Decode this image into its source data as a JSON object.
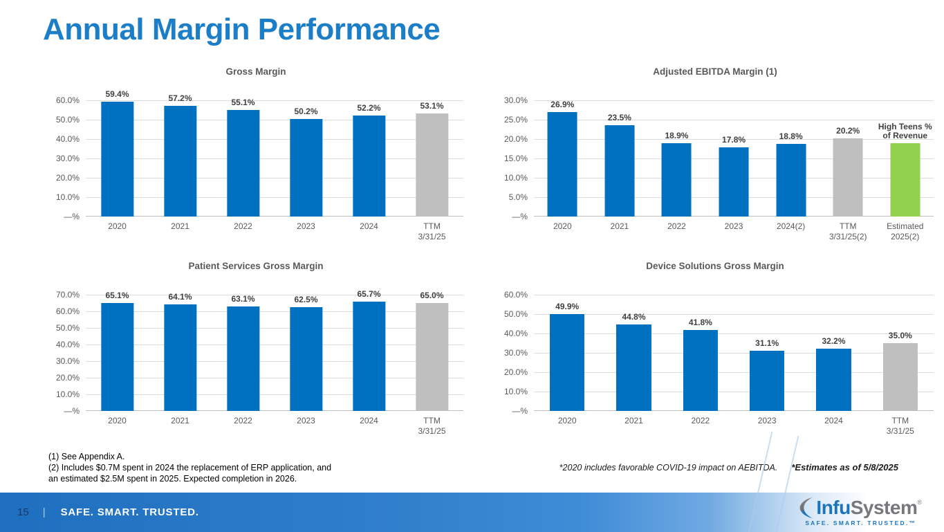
{
  "slide": {
    "title": "Annual Margin Performance",
    "footnotes_left": [
      "(1) See Appendix A.",
      "(2) Includes $0.7M spent in 2024 the replacement of ERP application, and",
      "an estimated $2.5M spent in 2025. Expected completion in 2026."
    ],
    "footnote_covid": "*2020 includes favorable COVID-19 impact on AEBITDA.",
    "footnote_estimates": "*Estimates as of 5/8/2025",
    "page_number": "15",
    "footer_divider": "|",
    "footer_tagline": "SAFE. SMART. TRUSTED.",
    "logo": {
      "name_part1": "Infu",
      "name_part2": "System",
      "registered_mark": "®",
      "tagline": "SAFE. SMART. TRUSTED.™"
    }
  },
  "colors": {
    "title_blue": "#1B7EC6",
    "bar_blue": "#0070C0",
    "bar_gray": "#BFBFBF",
    "bar_green": "#92D050",
    "chart_text": "#595959",
    "gridline": "#DCDCDC"
  },
  "chart_data": [
    {
      "type": "bar",
      "title": "Gross Margin",
      "categories": [
        "2020",
        "2021",
        "2022",
        "2023",
        "2024",
        "TTM\n3/31/25"
      ],
      "values": [
        59.4,
        57.2,
        55.1,
        50.2,
        52.2,
        53.1
      ],
      "labels": [
        "59.4%",
        "57.2%",
        "55.1%",
        "50.2%",
        "52.2%",
        "53.1%"
      ],
      "bar_colors": [
        "blue",
        "blue",
        "blue",
        "blue",
        "blue",
        "gray"
      ],
      "yticks": [
        "60.0%",
        "50.0%",
        "40.0%",
        "30.0%",
        "20.0%",
        "10.0%",
        "—%"
      ],
      "ylim": [
        0,
        60
      ],
      "xlabel": "",
      "ylabel": "",
      "grid": true,
      "legend": "none"
    },
    {
      "type": "bar",
      "title": "Adjusted EBITDA Margin (1)",
      "categories": [
        "2020",
        "2021",
        "2022",
        "2023",
        "2024(2)",
        "TTM\n3/31/25(2)",
        "Estimated\n2025(2)"
      ],
      "values": [
        26.9,
        23.5,
        18.9,
        17.8,
        18.8,
        20.2,
        19.0
      ],
      "labels": [
        "26.9%",
        "23.5%",
        "18.9%",
        "17.8%",
        "18.8%",
        "20.2%",
        "High Teens %\nof Revenue"
      ],
      "bar_colors": [
        "blue",
        "blue",
        "blue",
        "blue",
        "blue",
        "gray",
        "green"
      ],
      "yticks": [
        "30.0%",
        "25.0%",
        "20.0%",
        "15.0%",
        "10.0%",
        "5.0%",
        "—%"
      ],
      "ylim": [
        0,
        30
      ],
      "xlabel": "",
      "ylabel": "",
      "grid": true,
      "legend": "none"
    },
    {
      "type": "bar",
      "title": "Patient Services Gross Margin",
      "categories": [
        "2020",
        "2021",
        "2022",
        "2023",
        "2024",
        "TTM\n3/31/25"
      ],
      "values": [
        65.1,
        64.1,
        63.1,
        62.5,
        65.7,
        65.0
      ],
      "labels": [
        "65.1%",
        "64.1%",
        "63.1%",
        "62.5%",
        "65.7%",
        "65.0%"
      ],
      "bar_colors": [
        "blue",
        "blue",
        "blue",
        "blue",
        "blue",
        "gray"
      ],
      "yticks": [
        "70.0%",
        "60.0%",
        "50.0%",
        "40.0%",
        "30.0%",
        "20.0%",
        "10.0%",
        "—%"
      ],
      "ylim": [
        0,
        70
      ],
      "xlabel": "",
      "ylabel": "",
      "grid": true,
      "legend": "none"
    },
    {
      "type": "bar",
      "title": "Device Solutions Gross Margin",
      "categories": [
        "2020",
        "2021",
        "2022",
        "2023",
        "2024",
        "TTM\n3/31/25"
      ],
      "values": [
        49.9,
        44.8,
        41.8,
        31.1,
        32.2,
        35.0
      ],
      "labels": [
        "49.9%",
        "44.8%",
        "41.8%",
        "31.1%",
        "32.2%",
        "35.0%"
      ],
      "bar_colors": [
        "blue",
        "blue",
        "blue",
        "blue",
        "blue",
        "gray"
      ],
      "yticks": [
        "60.0%",
        "50.0%",
        "40.0%",
        "30.0%",
        "20.0%",
        "10.0%",
        "—%"
      ],
      "ylim": [
        0,
        60
      ],
      "xlabel": "",
      "ylabel": "",
      "grid": true,
      "legend": "none"
    }
  ]
}
